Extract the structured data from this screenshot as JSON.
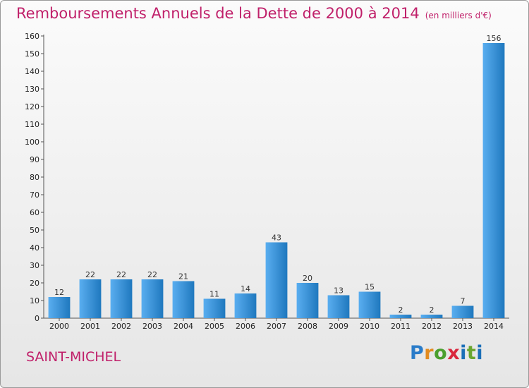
{
  "title": "Remboursements Annuels de la Dette de 2000 à 2014",
  "subtitle": "(en milliers d'€)",
  "commune": "SAINT-MICHEL",
  "logo": {
    "letters": [
      "P",
      "r",
      "o",
      "x",
      "i",
      "t",
      "i"
    ],
    "colors": [
      "#2a7cc9",
      "#e28b1f",
      "#4a9f2e",
      "#d9273d",
      "#1b6fb8",
      "#6aa630",
      "#1b6fb8"
    ]
  },
  "colors": {
    "bar_light": "#5aaef0",
    "bar_dark": "#1f78be",
    "title": "#c0206a"
  },
  "chart_data": {
    "type": "bar",
    "categories": [
      "2000",
      "2001",
      "2002",
      "2003",
      "2004",
      "2005",
      "2006",
      "2007",
      "2008",
      "2009",
      "2010",
      "2011",
      "2012",
      "2013",
      "2014"
    ],
    "values": [
      12,
      22,
      22,
      22,
      21,
      11,
      14,
      43,
      20,
      13,
      15,
      2,
      2,
      7,
      156
    ],
    "ylim": [
      0,
      160
    ],
    "yticks": [
      0,
      10,
      20,
      30,
      40,
      50,
      60,
      70,
      80,
      90,
      100,
      110,
      120,
      130,
      140,
      150,
      160
    ],
    "grid": false
  }
}
